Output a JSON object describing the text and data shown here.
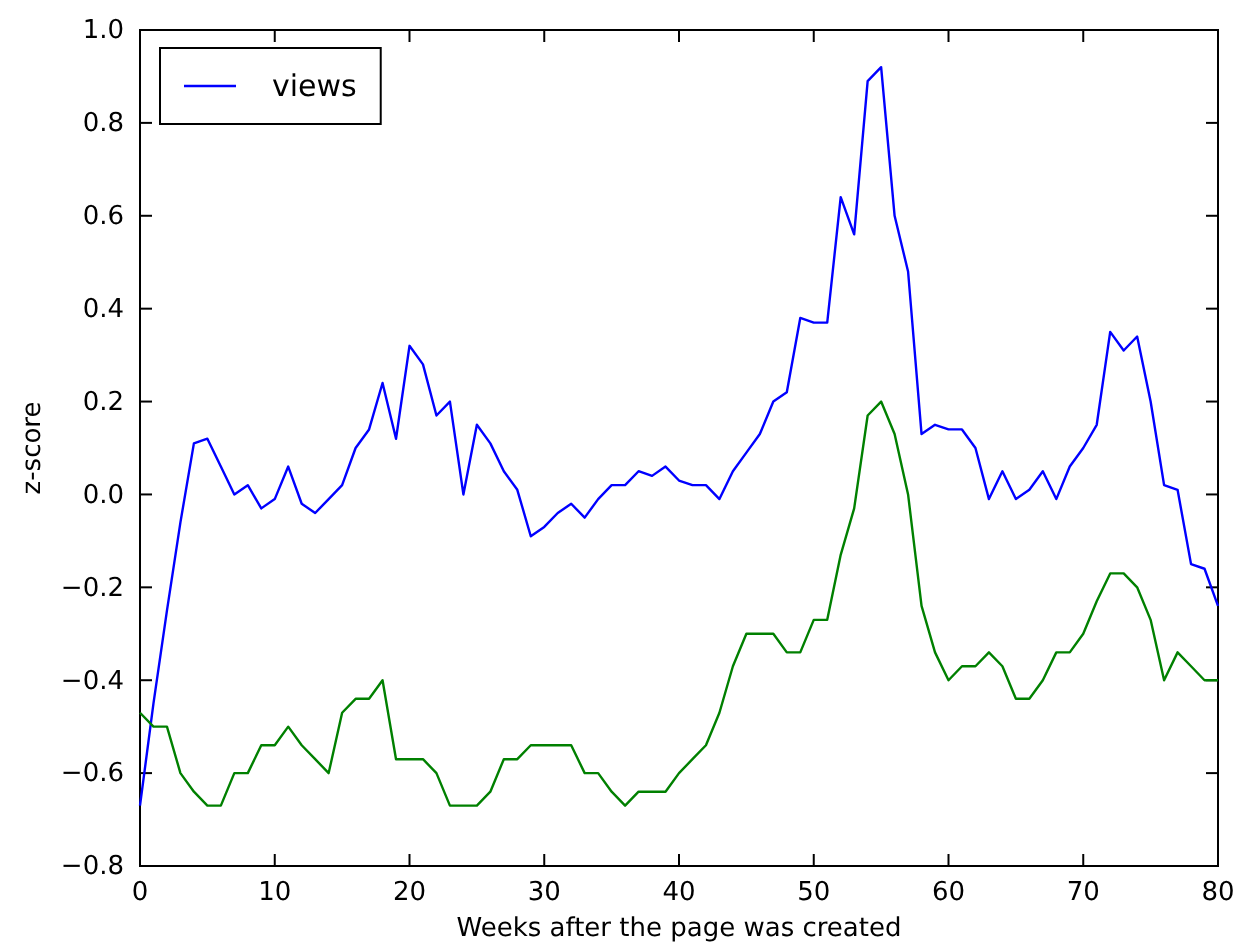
{
  "chart_data": {
    "type": "line",
    "xlabel": "Weeks after the page was created",
    "ylabel": "z-score",
    "x": [
      0,
      1,
      2,
      3,
      4,
      5,
      6,
      7,
      8,
      9,
      10,
      11,
      12,
      13,
      14,
      15,
      16,
      17,
      18,
      19,
      20,
      21,
      22,
      23,
      24,
      25,
      26,
      27,
      28,
      29,
      30,
      31,
      32,
      33,
      34,
      35,
      36,
      37,
      38,
      39,
      40,
      41,
      42,
      43,
      44,
      45,
      46,
      47,
      48,
      49,
      50,
      51,
      52,
      53,
      54,
      55,
      56,
      57,
      58,
      59,
      60,
      61,
      62,
      63,
      64,
      65,
      66,
      67,
      68,
      69,
      70,
      71,
      72,
      73,
      74,
      75,
      76,
      77,
      78,
      79,
      80
    ],
    "series": [
      {
        "name": "views",
        "color": "#0000ff",
        "values": [
          -0.67,
          -0.45,
          -0.25,
          -0.06,
          0.11,
          0.12,
          0.06,
          0.0,
          0.02,
          -0.03,
          -0.01,
          0.06,
          -0.02,
          -0.04,
          -0.01,
          0.02,
          0.1,
          0.14,
          0.24,
          0.12,
          0.32,
          0.28,
          0.17,
          0.2,
          0.0,
          0.15,
          0.11,
          0.05,
          0.01,
          -0.09,
          -0.07,
          -0.04,
          -0.02,
          -0.05,
          -0.01,
          0.02,
          0.02,
          0.05,
          0.04,
          0.06,
          0.03,
          0.02,
          0.02,
          -0.01,
          0.05,
          0.09,
          0.13,
          0.2,
          0.22,
          0.38,
          0.37,
          0.37,
          0.64,
          0.56,
          0.89,
          0.92,
          0.6,
          0.48,
          0.13,
          0.15,
          0.14,
          0.14,
          0.1,
          -0.01,
          0.05,
          -0.01,
          0.01,
          0.05,
          -0.01,
          0.06,
          0.1,
          0.15,
          0.35,
          0.31,
          0.34,
          0.2,
          0.02,
          0.01,
          -0.15,
          -0.16,
          -0.24
        ]
      },
      {
        "color": "#008000",
        "values": [
          -0.47,
          -0.5,
          -0.5,
          -0.6,
          -0.64,
          -0.67,
          -0.67,
          -0.6,
          -0.6,
          -0.54,
          -0.54,
          -0.5,
          -0.54,
          -0.57,
          -0.6,
          -0.47,
          -0.44,
          -0.44,
          -0.4,
          -0.57,
          -0.57,
          -0.57,
          -0.6,
          -0.67,
          -0.67,
          -0.67,
          -0.64,
          -0.57,
          -0.57,
          -0.54,
          -0.54,
          -0.54,
          -0.54,
          -0.6,
          -0.6,
          -0.64,
          -0.67,
          -0.64,
          -0.64,
          -0.64,
          -0.6,
          -0.57,
          -0.54,
          -0.47,
          -0.37,
          -0.3,
          -0.3,
          -0.3,
          -0.34,
          -0.34,
          -0.27,
          -0.27,
          -0.13,
          -0.03,
          0.17,
          0.2,
          0.13,
          0.0,
          -0.24,
          -0.34,
          -0.4,
          -0.37,
          -0.37,
          -0.34,
          -0.37,
          -0.44,
          -0.44,
          -0.4,
          -0.34,
          -0.34,
          -0.3,
          -0.23,
          -0.17,
          -0.17,
          -0.2,
          -0.27,
          -0.4,
          -0.34,
          -0.37,
          -0.4,
          -0.4
        ]
      }
    ],
    "xlim": [
      0,
      80
    ],
    "xticks": [
      0,
      10,
      20,
      30,
      40,
      50,
      60,
      70,
      80
    ],
    "ylim": [
      -0.8,
      1.0
    ],
    "yticks": [
      {
        "value": -0.8,
        "label": "−0.8"
      },
      {
        "value": -0.6,
        "label": "−0.6"
      },
      {
        "value": -0.4,
        "label": "−0.4"
      },
      {
        "value": -0.2,
        "label": "−0.2"
      },
      {
        "value": 0,
        "label": "0.0"
      },
      {
        "value": 0.2,
        "label": "0.2"
      },
      {
        "value": 0.4,
        "label": "0.4"
      },
      {
        "value": 0.6,
        "label": "0.6"
      },
      {
        "value": 0.8,
        "label": "0.8"
      },
      {
        "value": 1.0,
        "label": "1.0"
      }
    ],
    "grid": false,
    "legend": "top left",
    "line_style": "solid",
    "marker": "none"
  }
}
